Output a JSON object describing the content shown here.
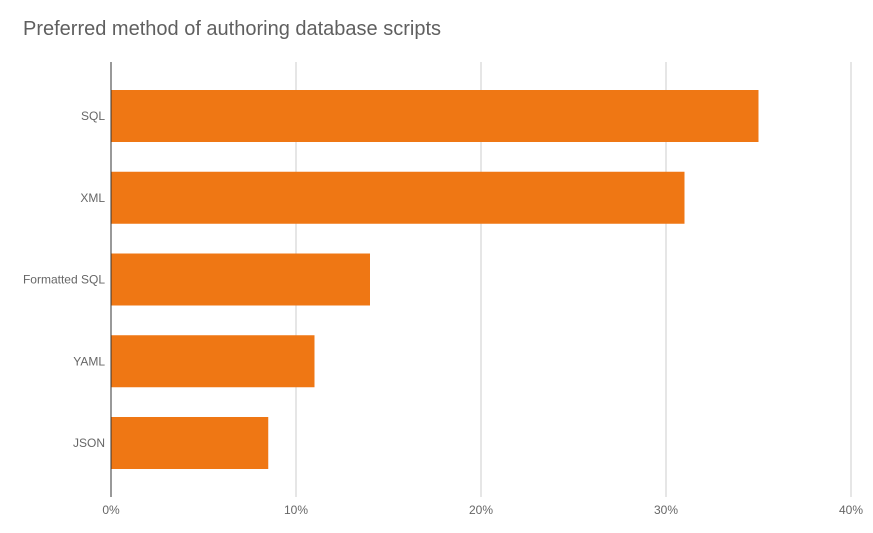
{
  "chart_data": {
    "type": "bar",
    "orientation": "horizontal",
    "title": "Preferred method of authoring database scripts",
    "categories": [
      "SQL",
      "XML",
      "Formatted SQL",
      "YAML",
      "JSON"
    ],
    "values": [
      35.0,
      31.0,
      14.0,
      11.0,
      8.5
    ],
    "value_unit": "%",
    "xlim": [
      0,
      40
    ],
    "ticks": [
      0,
      10,
      20,
      30,
      40
    ],
    "tick_labels": [
      "0%",
      "10%",
      "20%",
      "30%",
      "40%"
    ],
    "grid": true,
    "legend": "none"
  },
  "colors": {
    "bar": "#ef7714",
    "grid": "#cccccc",
    "axis": "#333333",
    "text": "#666666",
    "title": "#5f5f5f"
  }
}
